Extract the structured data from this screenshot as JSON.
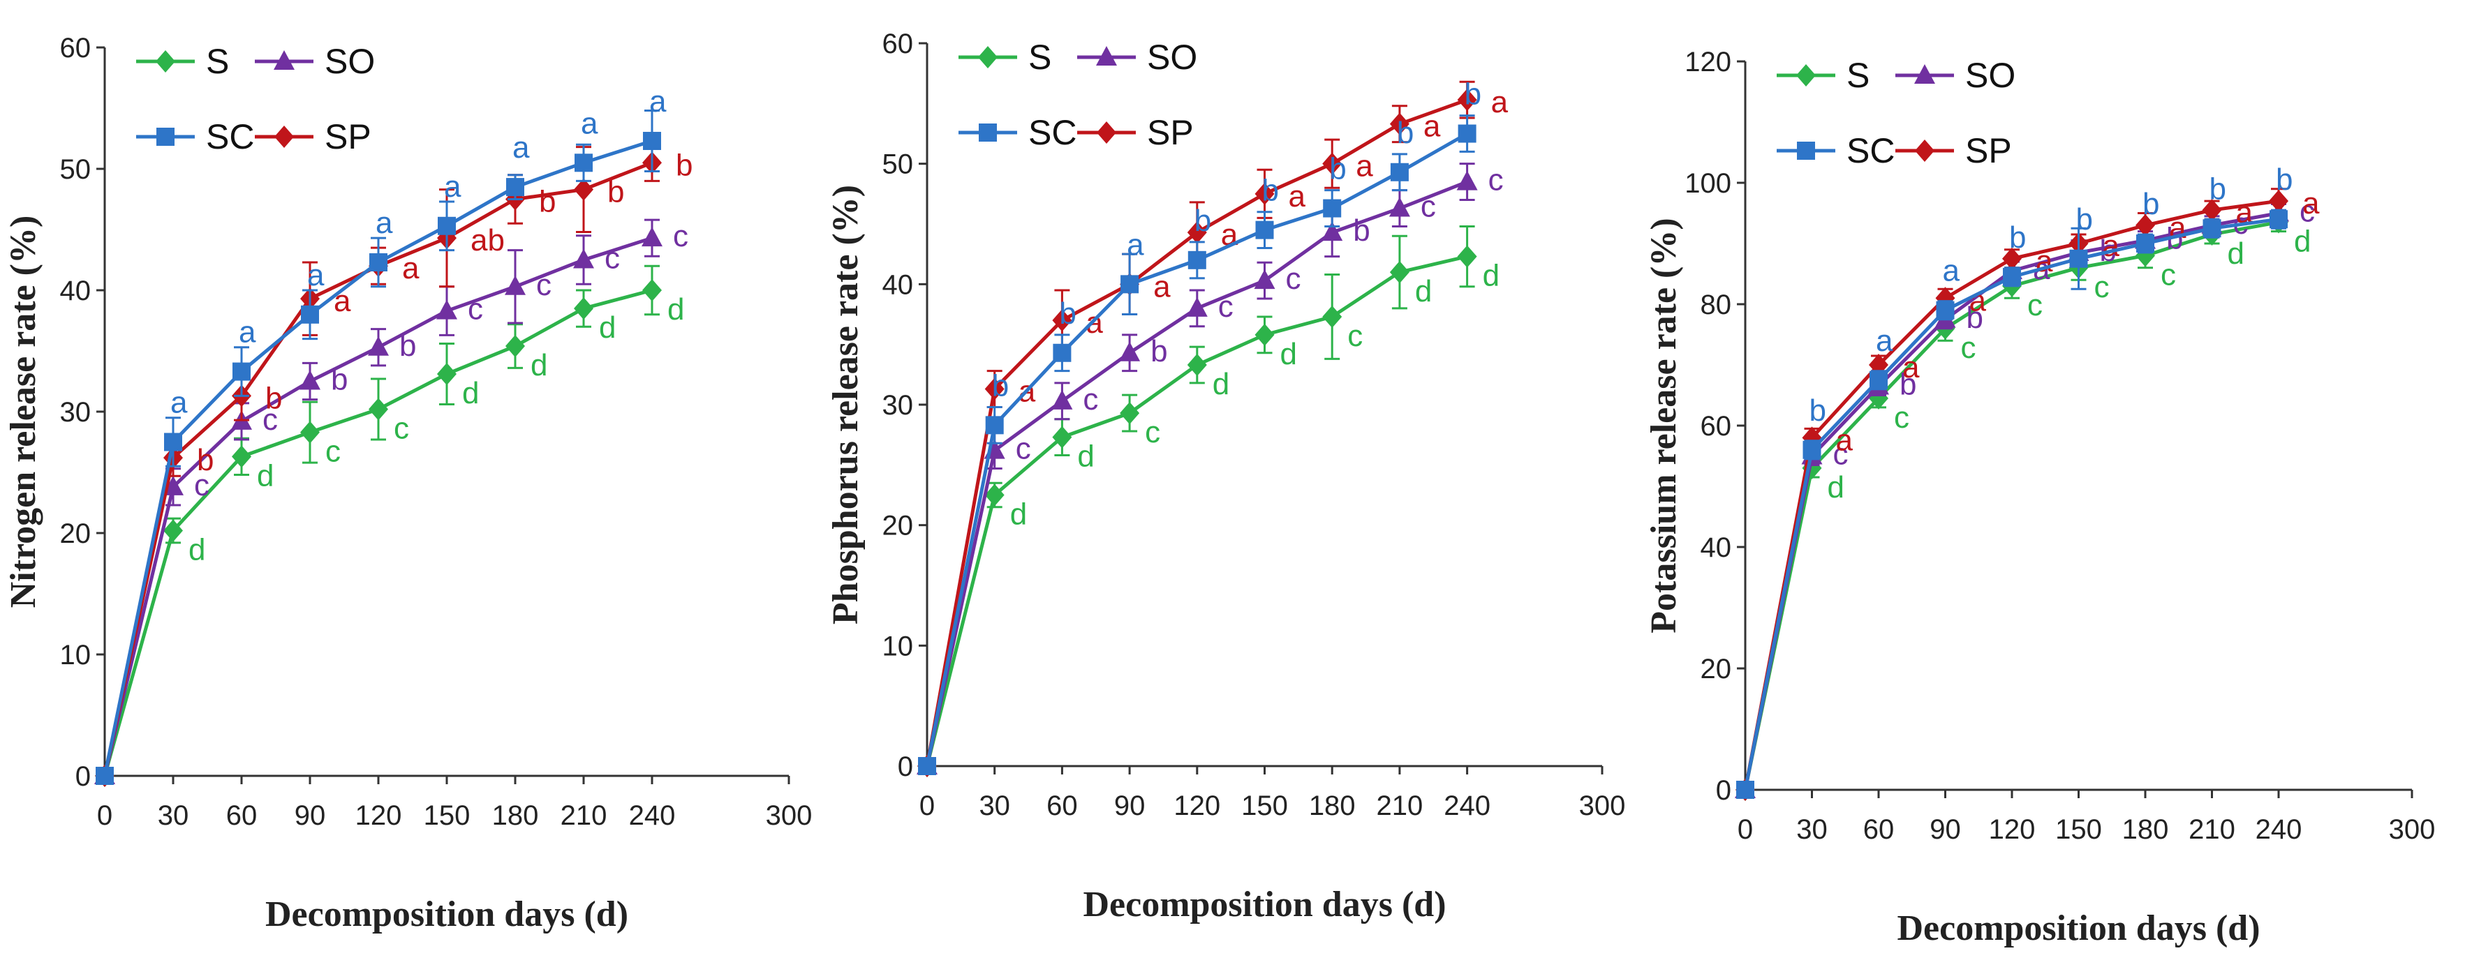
{
  "series_meta": [
    {
      "key": "S",
      "name": "S",
      "color": "#2db34a",
      "marker": "diamond"
    },
    {
      "key": "SO",
      "name": "SO",
      "color": "#7030a0",
      "marker": "triangle"
    },
    {
      "key": "SC",
      "name": "SC",
      "color": "#2e75c8",
      "marker": "square"
    },
    {
      "key": "SP",
      "name": "SP",
      "color": "#c0151a",
      "marker": "diamond"
    }
  ],
  "chart_data": [
    {
      "type": "line",
      "title": "",
      "xlabel": "Decomposition days (d)",
      "ylabel": "Nitrogen release rate (%)",
      "x": [
        0,
        30,
        60,
        90,
        120,
        150,
        180,
        210,
        240
      ],
      "xlim": [
        0,
        300
      ],
      "xticks": [
        0,
        30,
        60,
        90,
        120,
        150,
        180,
        210,
        240,
        300
      ],
      "ylim": [
        0,
        60
      ],
      "yticks": [
        0,
        10,
        20,
        30,
        40,
        50,
        60
      ],
      "legend": "top-left",
      "series": [
        {
          "name": "S",
          "values": [
            0,
            20.2,
            26.3,
            28.3,
            30.2,
            33.1,
            35.4,
            38.5,
            40.0
          ],
          "errors": [
            0,
            1.0,
            1.5,
            2.5,
            2.5,
            2.5,
            1.8,
            1.5,
            2.0
          ],
          "labels": [
            "",
            "d",
            "d",
            "c",
            "c",
            "d",
            "d",
            "d",
            "d"
          ]
        },
        {
          "name": "SO",
          "values": [
            0,
            23.8,
            29.2,
            32.5,
            35.3,
            38.3,
            40.3,
            42.5,
            44.3
          ],
          "errors": [
            0,
            1.5,
            1.5,
            1.5,
            1.5,
            2.0,
            3.0,
            2.0,
            1.5
          ],
          "labels": [
            "",
            "c",
            "c",
            "b",
            "b",
            "c",
            "c",
            "c",
            "c"
          ]
        },
        {
          "name": "SC",
          "values": [
            0,
            27.5,
            33.3,
            38.0,
            42.3,
            45.3,
            48.5,
            50.5,
            52.3
          ],
          "errors": [
            0,
            2.0,
            2.0,
            2.0,
            2.0,
            2.0,
            1.0,
            1.5,
            2.5
          ],
          "labels": [
            "",
            "a",
            "a",
            "a",
            "a",
            "a",
            "a",
            "a",
            "a"
          ]
        },
        {
          "name": "SP",
          "values": [
            0,
            26.2,
            31.3,
            39.3,
            42.0,
            44.3,
            47.5,
            48.3,
            50.5
          ],
          "errors": [
            0,
            1.5,
            2.0,
            3.0,
            1.5,
            4.0,
            2.0,
            3.5,
            1.5
          ],
          "labels": [
            "",
            "b",
            "b",
            "a",
            "a",
            "ab",
            "b",
            "b",
            "b"
          ]
        }
      ]
    },
    {
      "type": "line",
      "title": "",
      "xlabel": "Decomposition days (d)",
      "ylabel": "Phosphorus release rate (%)",
      "x": [
        0,
        30,
        60,
        90,
        120,
        150,
        180,
        210,
        240
      ],
      "xlim": [
        0,
        300
      ],
      "xticks": [
        0,
        30,
        60,
        90,
        120,
        150,
        180,
        210,
        240,
        300
      ],
      "ylim": [
        0,
        60
      ],
      "yticks": [
        0,
        10,
        20,
        30,
        40,
        50,
        60
      ],
      "legend": "top-left",
      "series": [
        {
          "name": "S",
          "values": [
            0,
            22.5,
            27.3,
            29.3,
            33.3,
            35.8,
            37.3,
            41.0,
            42.3
          ],
          "errors": [
            0,
            1.0,
            1.5,
            1.5,
            1.5,
            1.5,
            3.5,
            3.0,
            2.5
          ],
          "labels": [
            "",
            "d",
            "d",
            "c",
            "d",
            "d",
            "c",
            "d",
            "d"
          ]
        },
        {
          "name": "SO",
          "values": [
            0,
            26.2,
            30.3,
            34.3,
            38.0,
            40.3,
            44.3,
            46.3,
            48.5
          ],
          "errors": [
            0,
            1.5,
            1.5,
            1.5,
            1.5,
            1.5,
            2.0,
            1.5,
            1.5
          ],
          "labels": [
            "",
            "c",
            "c",
            "b",
            "c",
            "c",
            "b",
            "c",
            "c"
          ]
        },
        {
          "name": "SC",
          "values": [
            0,
            28.3,
            34.3,
            40.0,
            42.0,
            44.5,
            46.3,
            49.3,
            52.5
          ],
          "errors": [
            0,
            1.5,
            1.5,
            2.5,
            1.5,
            1.5,
            1.5,
            1.5,
            1.5
          ],
          "labels": [
            "",
            "b",
            "b",
            "a",
            "b",
            "b",
            "b",
            "b",
            "b"
          ]
        },
        {
          "name": "SP",
          "values": [
            0,
            31.3,
            37.0,
            40.0,
            44.3,
            47.5,
            50.0,
            53.3,
            55.3
          ],
          "errors": [
            0,
            1.5,
            2.5,
            2.5,
            2.5,
            2.0,
            2.0,
            1.5,
            1.5
          ],
          "labels": [
            "",
            "a",
            "a",
            "a",
            "a",
            "a",
            "a",
            "a",
            "a"
          ]
        }
      ]
    },
    {
      "type": "line",
      "title": "",
      "xlabel": "Decomposition days (d)",
      "ylabel": "Potassium release rate (%)",
      "x": [
        0,
        30,
        60,
        90,
        120,
        150,
        180,
        210,
        240
      ],
      "xlim": [
        0,
        300
      ],
      "xticks": [
        0,
        30,
        60,
        90,
        120,
        150,
        180,
        210,
        240,
        300
      ],
      "ylim": [
        0,
        120
      ],
      "yticks": [
        0,
        20,
        40,
        60,
        80,
        100,
        120
      ],
      "legend": "top-left",
      "series": [
        {
          "name": "S",
          "values": [
            0,
            53.0,
            64.5,
            76.0,
            83.0,
            86.0,
            88.0,
            91.5,
            93.5
          ],
          "errors": [
            0,
            1.5,
            1.5,
            2.0,
            2.0,
            2.0,
            2.0,
            1.5,
            1.5
          ],
          "labels": [
            "",
            "d",
            "c",
            "c",
            "c",
            "c",
            "c",
            "d",
            "d"
          ]
        },
        {
          "name": "SO",
          "values": [
            0,
            55.0,
            66.5,
            77.5,
            85.5,
            88.5,
            90.5,
            93.0,
            95.0
          ],
          "errors": [
            0,
            1.5,
            1.5,
            1.5,
            1.5,
            2.0,
            1.5,
            1.5,
            1.5
          ],
          "labels": [
            "",
            "c",
            "b",
            "b",
            "a",
            "b",
            "b",
            "c",
            "c"
          ]
        },
        {
          "name": "SC",
          "values": [
            0,
            56.0,
            67.5,
            79.0,
            84.5,
            87.5,
            90.0,
            92.5,
            94.0
          ],
          "errors": [
            0,
            1.5,
            1.5,
            1.5,
            1.5,
            5.0,
            1.5,
            1.5,
            1.5
          ],
          "labels": [
            "",
            "b",
            "a",
            "a",
            "b",
            "b",
            "b",
            "b",
            "b"
          ]
        },
        {
          "name": "SP",
          "values": [
            0,
            58.0,
            70.0,
            81.0,
            87.5,
            90.0,
            93.0,
            95.5,
            97.0
          ],
          "errors": [
            0,
            1.5,
            1.5,
            1.5,
            1.5,
            1.5,
            2.0,
            1.5,
            2.0
          ],
          "labels": [
            "",
            "a",
            "a",
            "a",
            "a",
            "a",
            "a",
            "a",
            "a"
          ]
        }
      ]
    }
  ]
}
